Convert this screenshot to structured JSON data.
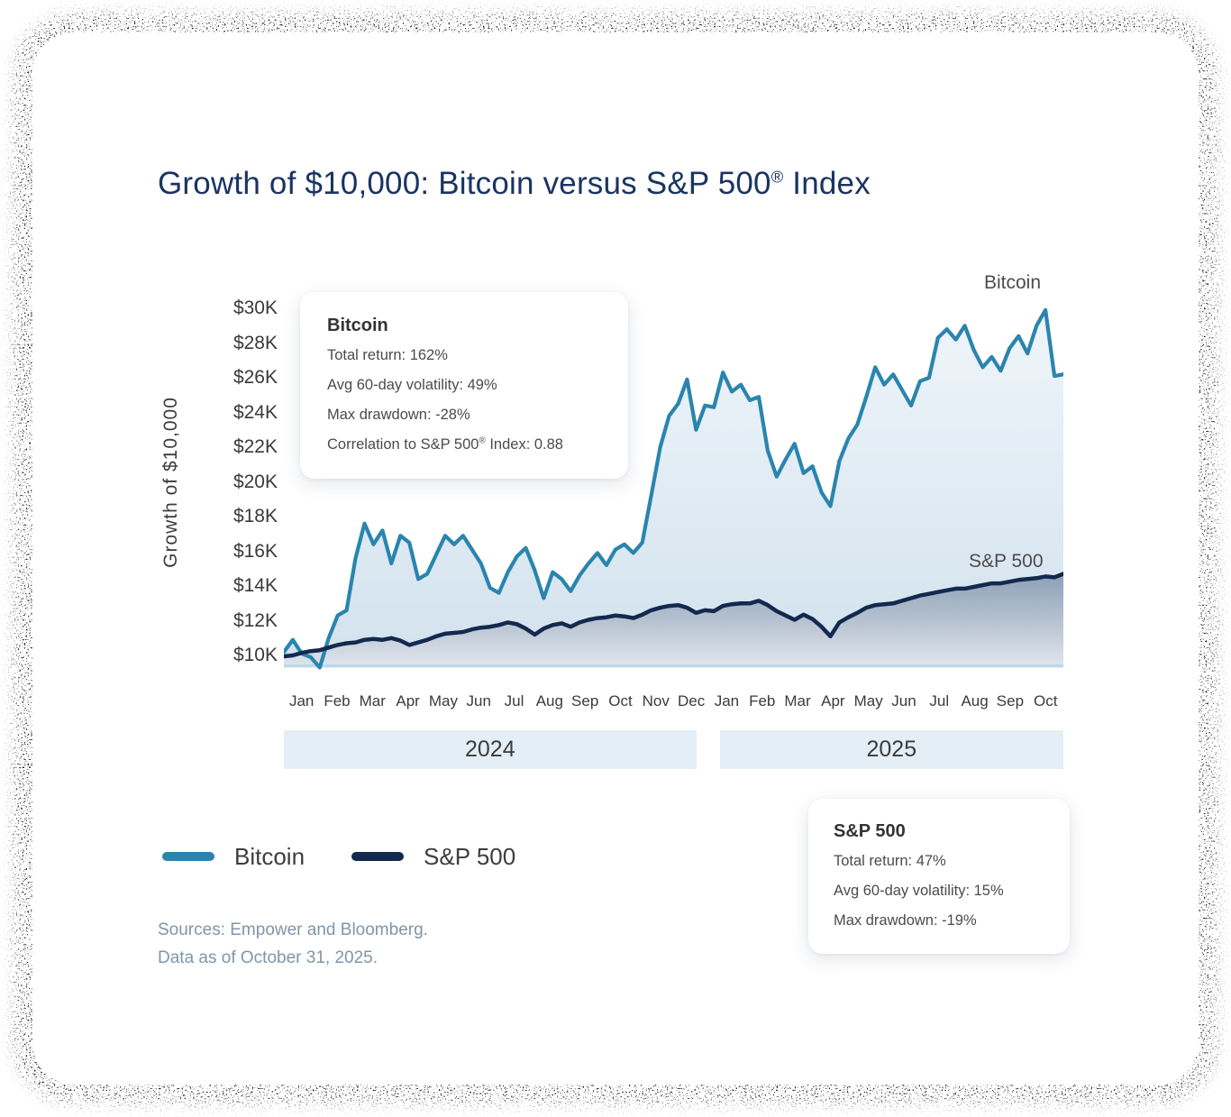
{
  "header": {
    "title_main": "Growth of $10,000: Bitcoin versus S&P 500",
    "title_reg": "®",
    "title_suffix": " Index"
  },
  "annotations": {
    "bitcoin_line_label": "Bitcoin",
    "sp500_line_label": "S&P 500"
  },
  "callouts": {
    "bitcoin": {
      "title": "Bitcoin",
      "row_total": "Total return: 162%",
      "row_vol": "Avg 60-day volatility: 49%",
      "row_dd": "Max drawdown: -28%",
      "row_corr_pre": "Correlation to S&P 500",
      "row_corr_reg": "®",
      "row_corr_suf": " Index: 0.88"
    },
    "sp500": {
      "title": "S&P 500",
      "row_total": "Total return: 47%",
      "row_vol": "Avg 60-day volatility: 15%",
      "row_dd": "Max drawdown: -19%"
    }
  },
  "legend": {
    "items": [
      {
        "label": "Bitcoin",
        "color": "#2a85ad"
      },
      {
        "label": "S&P 500",
        "color": "#13294e"
      }
    ]
  },
  "footer": {
    "source_line1": "Sources: Empower and Bloomberg.",
    "source_line2": "Data as of October 31, 2025."
  },
  "colors": {
    "title": "#1a3462",
    "bitcoin_line": "#2a85ad",
    "sp500_line": "#13294e",
    "baseline": "#bcd9e9",
    "year_band_bg": "#e3eef6"
  },
  "chart_data": {
    "type": "area",
    "title": "Growth of $10,000: Bitcoin versus S&P 500® Index",
    "xlabel": "",
    "ylabel": "Growth of $10,000",
    "unit": "USD thousands",
    "y_range_thousands": [
      10,
      30
    ],
    "y_ticks": [
      "$30K",
      "$28K",
      "$26K",
      "$24K",
      "$22K",
      "$20K",
      "$18K",
      "$16K",
      "$14K",
      "$12K",
      "$10K"
    ],
    "baseline_value": 9.4,
    "grid": false,
    "legend_position": "bottom-left",
    "x_months": [
      "Jan",
      "Feb",
      "Mar",
      "Apr",
      "May",
      "Jun",
      "Jul",
      "Aug",
      "Sep",
      "Oct",
      "Nov",
      "Dec",
      "Jan",
      "Feb",
      "Mar",
      "Apr",
      "May",
      "Jun",
      "Jul",
      "Aug",
      "Sep",
      "Oct"
    ],
    "year_bands": [
      {
        "label": "2024",
        "months": 12
      },
      {
        "label": "2025",
        "months": 10
      }
    ],
    "series": [
      {
        "name": "Bitcoin",
        "color": "#2a85ad",
        "final_note": "ends at ~$26.2K (total return 162%)",
        "values": [
          10.2,
          10.9,
          10.1,
          9.9,
          9.3,
          11.0,
          12.3,
          12.6,
          15.6,
          17.6,
          16.4,
          17.2,
          15.3,
          16.9,
          16.5,
          14.4,
          14.7,
          15.8,
          16.9,
          16.4,
          16.9,
          16.1,
          15.3,
          13.9,
          13.6,
          14.8,
          15.7,
          16.2,
          14.9,
          13.3,
          14.8,
          14.4,
          13.7,
          14.6,
          15.3,
          15.9,
          15.2,
          16.1,
          16.4,
          15.9,
          16.5,
          19.2,
          22.0,
          23.8,
          24.5,
          25.9,
          23.0,
          24.4,
          24.3,
          26.3,
          25.2,
          25.6,
          24.7,
          24.9,
          21.8,
          20.3,
          21.3,
          22.2,
          20.5,
          20.9,
          19.4,
          18.6,
          21.2,
          22.5,
          23.3,
          24.9,
          26.6,
          25.6,
          26.2,
          25.3,
          24.4,
          25.8,
          26.0,
          28.3,
          28.8,
          28.2,
          29.0,
          27.6,
          26.6,
          27.2,
          26.4,
          27.7,
          28.4,
          27.4,
          29.0,
          29.9,
          26.1,
          26.2
        ]
      },
      {
        "name": "S&P 500",
        "color": "#13294e",
        "final_note": "ends at ~$14.7K (total return 47%)",
        "values": [
          9.95,
          10.0,
          10.15,
          10.25,
          10.3,
          10.45,
          10.6,
          10.7,
          10.75,
          10.9,
          10.95,
          10.9,
          11.0,
          10.85,
          10.6,
          10.75,
          10.9,
          11.1,
          11.25,
          11.3,
          11.35,
          11.5,
          11.6,
          11.65,
          11.75,
          11.9,
          11.8,
          11.55,
          11.2,
          11.55,
          11.75,
          11.85,
          11.65,
          11.9,
          12.05,
          12.15,
          12.2,
          12.3,
          12.25,
          12.15,
          12.35,
          12.6,
          12.75,
          12.85,
          12.9,
          12.75,
          12.45,
          12.6,
          12.55,
          12.85,
          12.95,
          13.0,
          13.0,
          13.15,
          12.9,
          12.55,
          12.3,
          12.05,
          12.35,
          12.1,
          11.65,
          11.1,
          11.9,
          12.2,
          12.45,
          12.75,
          12.9,
          12.95,
          13.0,
          13.15,
          13.3,
          13.45,
          13.55,
          13.65,
          13.75,
          13.85,
          13.85,
          13.95,
          14.05,
          14.15,
          14.15,
          14.25,
          14.35,
          14.4,
          14.45,
          14.55,
          14.5,
          14.7
        ]
      }
    ]
  }
}
